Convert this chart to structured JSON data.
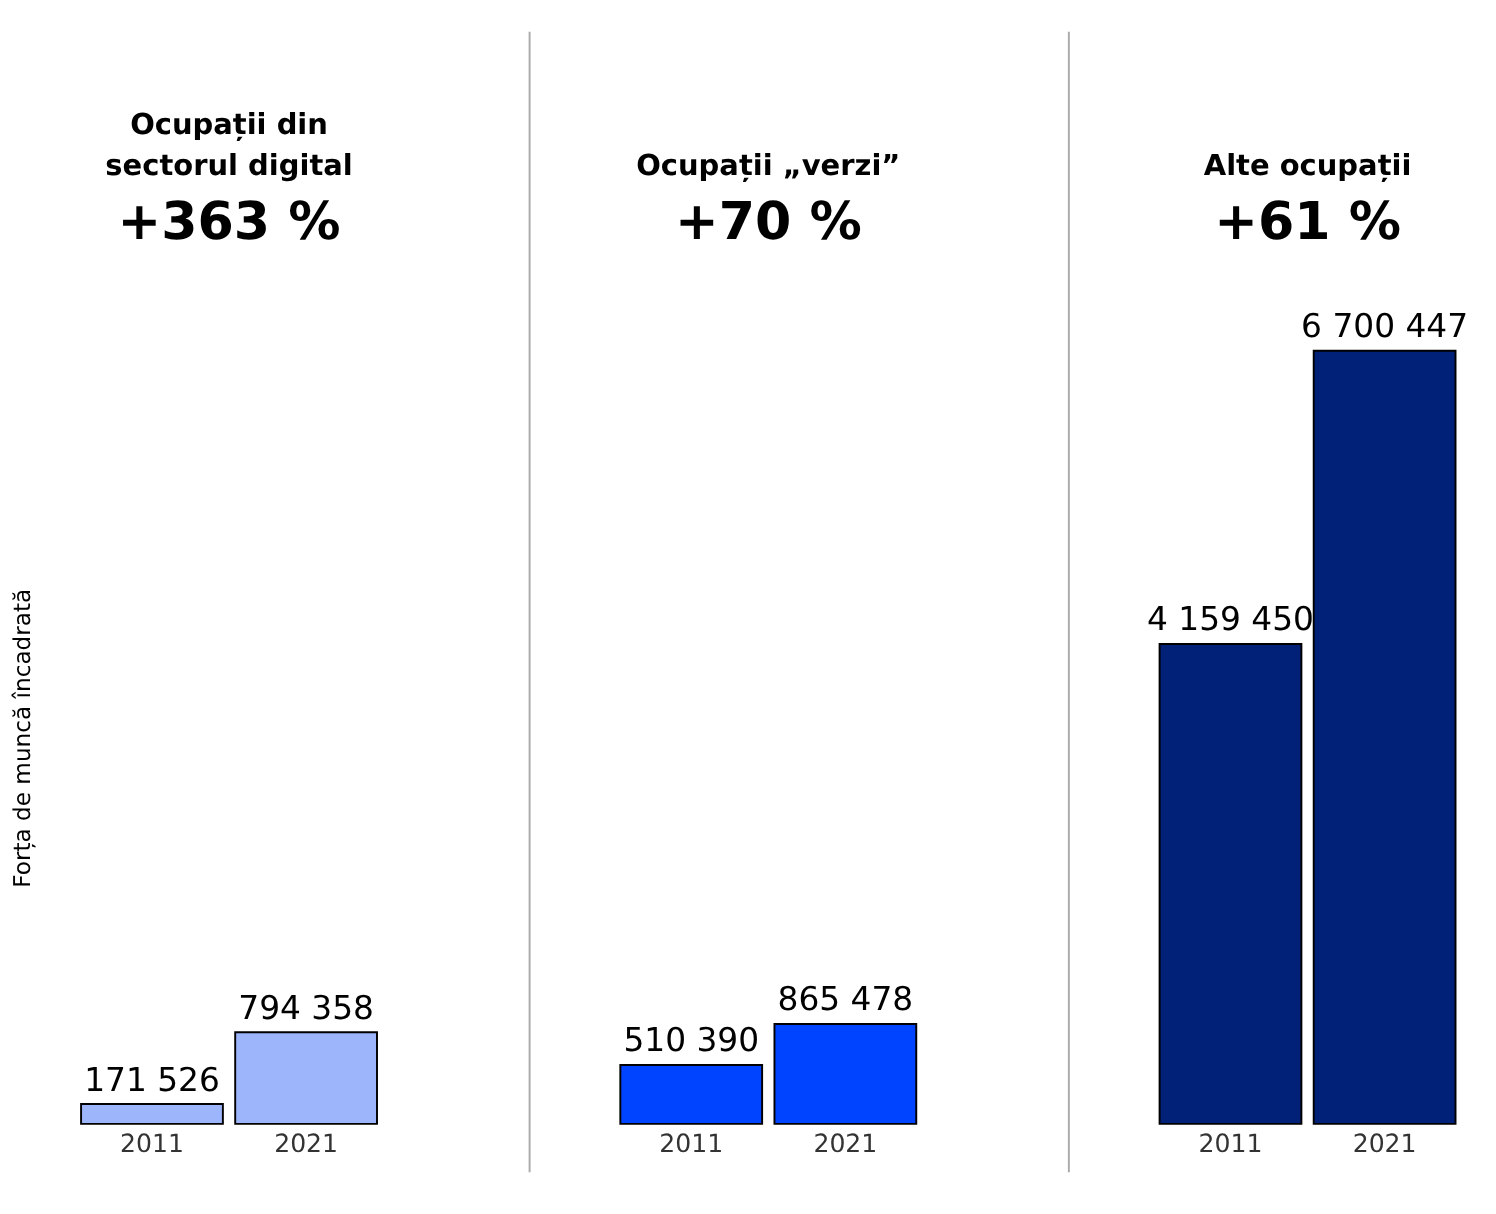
{
  "chart_data": [
    {
      "type": "bar",
      "title": "Ocupații din sectorul digital",
      "subtitle": "+363 %",
      "ylabel": "Forța de muncă încadrată",
      "categories": [
        "2011",
        "2021"
      ],
      "values": [
        171526,
        794358
      ],
      "color": "#9db5fb",
      "value_labels": [
        "171 526",
        "794 358"
      ],
      "tick_labels": "x"
    },
    {
      "type": "bar",
      "title": "Ocupații „verzi”",
      "subtitle": "+70 %",
      "categories": [
        "2011",
        "2021"
      ],
      "values": [
        510390,
        865478
      ],
      "color": "#0044ff",
      "value_labels": [
        "510 390",
        "865 478"
      ],
      "tick_labels": "x"
    },
    {
      "type": "bar",
      "title": "Alte ocupații",
      "subtitle": "+61 %",
      "categories": [
        "2011",
        "2021"
      ],
      "values": [
        4159450,
        6700447
      ],
      "color": "#002177",
      "value_labels": [
        "4 159 450",
        "6 700 447"
      ],
      "tick_labels": "x"
    }
  ]
}
